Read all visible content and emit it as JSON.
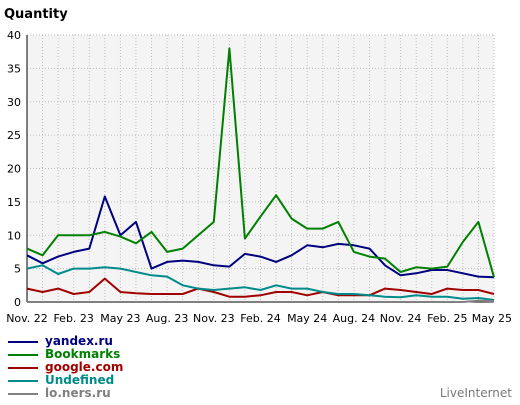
{
  "chart_data": {
    "type": "line",
    "title": "Quantity",
    "xlabel": "",
    "ylabel": "",
    "ylim": [
      0,
      40
    ],
    "yticks": [
      0,
      5,
      10,
      15,
      20,
      25,
      30,
      35,
      40
    ],
    "x": [
      "Nov. 22",
      "Dec. 22",
      "Jan. 23",
      "Feb. 23",
      "Mar. 23",
      "Apr. 23",
      "May 23",
      "Jun. 23",
      "Jul. 23",
      "Aug. 23",
      "Sep. 23",
      "Oct. 23",
      "Nov. 23",
      "Dec. 23",
      "Jan. 24",
      "Feb. 24",
      "Mar. 24",
      "Apr. 24",
      "May 24",
      "Jun. 24",
      "Jul. 24",
      "Aug. 24",
      "Sep. 24",
      "Oct. 24",
      "Nov. 24",
      "Dec. 24",
      "Jan. 25",
      "Feb. 25",
      "Mar. 25",
      "Apr. 25",
      "May 25"
    ],
    "xtick_labels": [
      "Nov. 22",
      "Feb. 23",
      "May 23",
      "Aug. 23",
      "Nov. 23",
      "Feb. 24",
      "May 24",
      "Aug. 24",
      "Nov. 24",
      "Feb. 25",
      "May 25"
    ],
    "grid": true,
    "legend_position": "bottom-left",
    "series": [
      {
        "name": "yandex.ru",
        "color": "#000080",
        "values": [
          7,
          5.8,
          6.8,
          7.5,
          8,
          15.8,
          10,
          12,
          5,
          6,
          6.2,
          6,
          5.5,
          5.3,
          7.2,
          6.8,
          6,
          7,
          8.5,
          8.2,
          8.7,
          8.5,
          8,
          5.5,
          4,
          4.3,
          4.8,
          4.8,
          4.3,
          3.8,
          3.7
        ]
      },
      {
        "name": "Bookmarks",
        "color": "#008000",
        "values": [
          8,
          7,
          10,
          10,
          10,
          10.5,
          9.8,
          8.8,
          10.5,
          7.5,
          8,
          10,
          12,
          38,
          9.5,
          12.8,
          16,
          12.5,
          11,
          11,
          12,
          7.5,
          6.8,
          6.5,
          4.5,
          5.2,
          5,
          5.3,
          9,
          12,
          3.7
        ]
      },
      {
        "name": "google.com",
        "color": "#a00000",
        "values": [
          2,
          1.5,
          2,
          1.2,
          1.5,
          3.5,
          1.5,
          1.3,
          1.2,
          1.2,
          1.2,
          2,
          1.5,
          0.8,
          0.8,
          1,
          1.5,
          1.5,
          1,
          1.5,
          1,
          1,
          1,
          2,
          1.8,
          1.5,
          1.2,
          2,
          1.8,
          1.8,
          1.2
        ]
      },
      {
        "name": "Undefined",
        "color": "#008b8b",
        "values": [
          5,
          5.5,
          4.2,
          5,
          5,
          5.2,
          5,
          4.5,
          4,
          3.8,
          2.5,
          2,
          1.8,
          2,
          2.2,
          1.8,
          2.5,
          2,
          2,
          1.5,
          1.2,
          1.2,
          1,
          0.8,
          0.7,
          1,
          0.8,
          0.8,
          0.5,
          0.6,
          0.3
        ]
      },
      {
        "name": "lo.ners.ru",
        "color": "#808080",
        "values": [
          0,
          0,
          0,
          0,
          0,
          0,
          0,
          0,
          0,
          0,
          0,
          0,
          0,
          0,
          0,
          0,
          0,
          0,
          0,
          0,
          0,
          0,
          0,
          0,
          0,
          0,
          0,
          0,
          0,
          0.2,
          0.1
        ]
      }
    ]
  },
  "credit": "LiveInternet"
}
